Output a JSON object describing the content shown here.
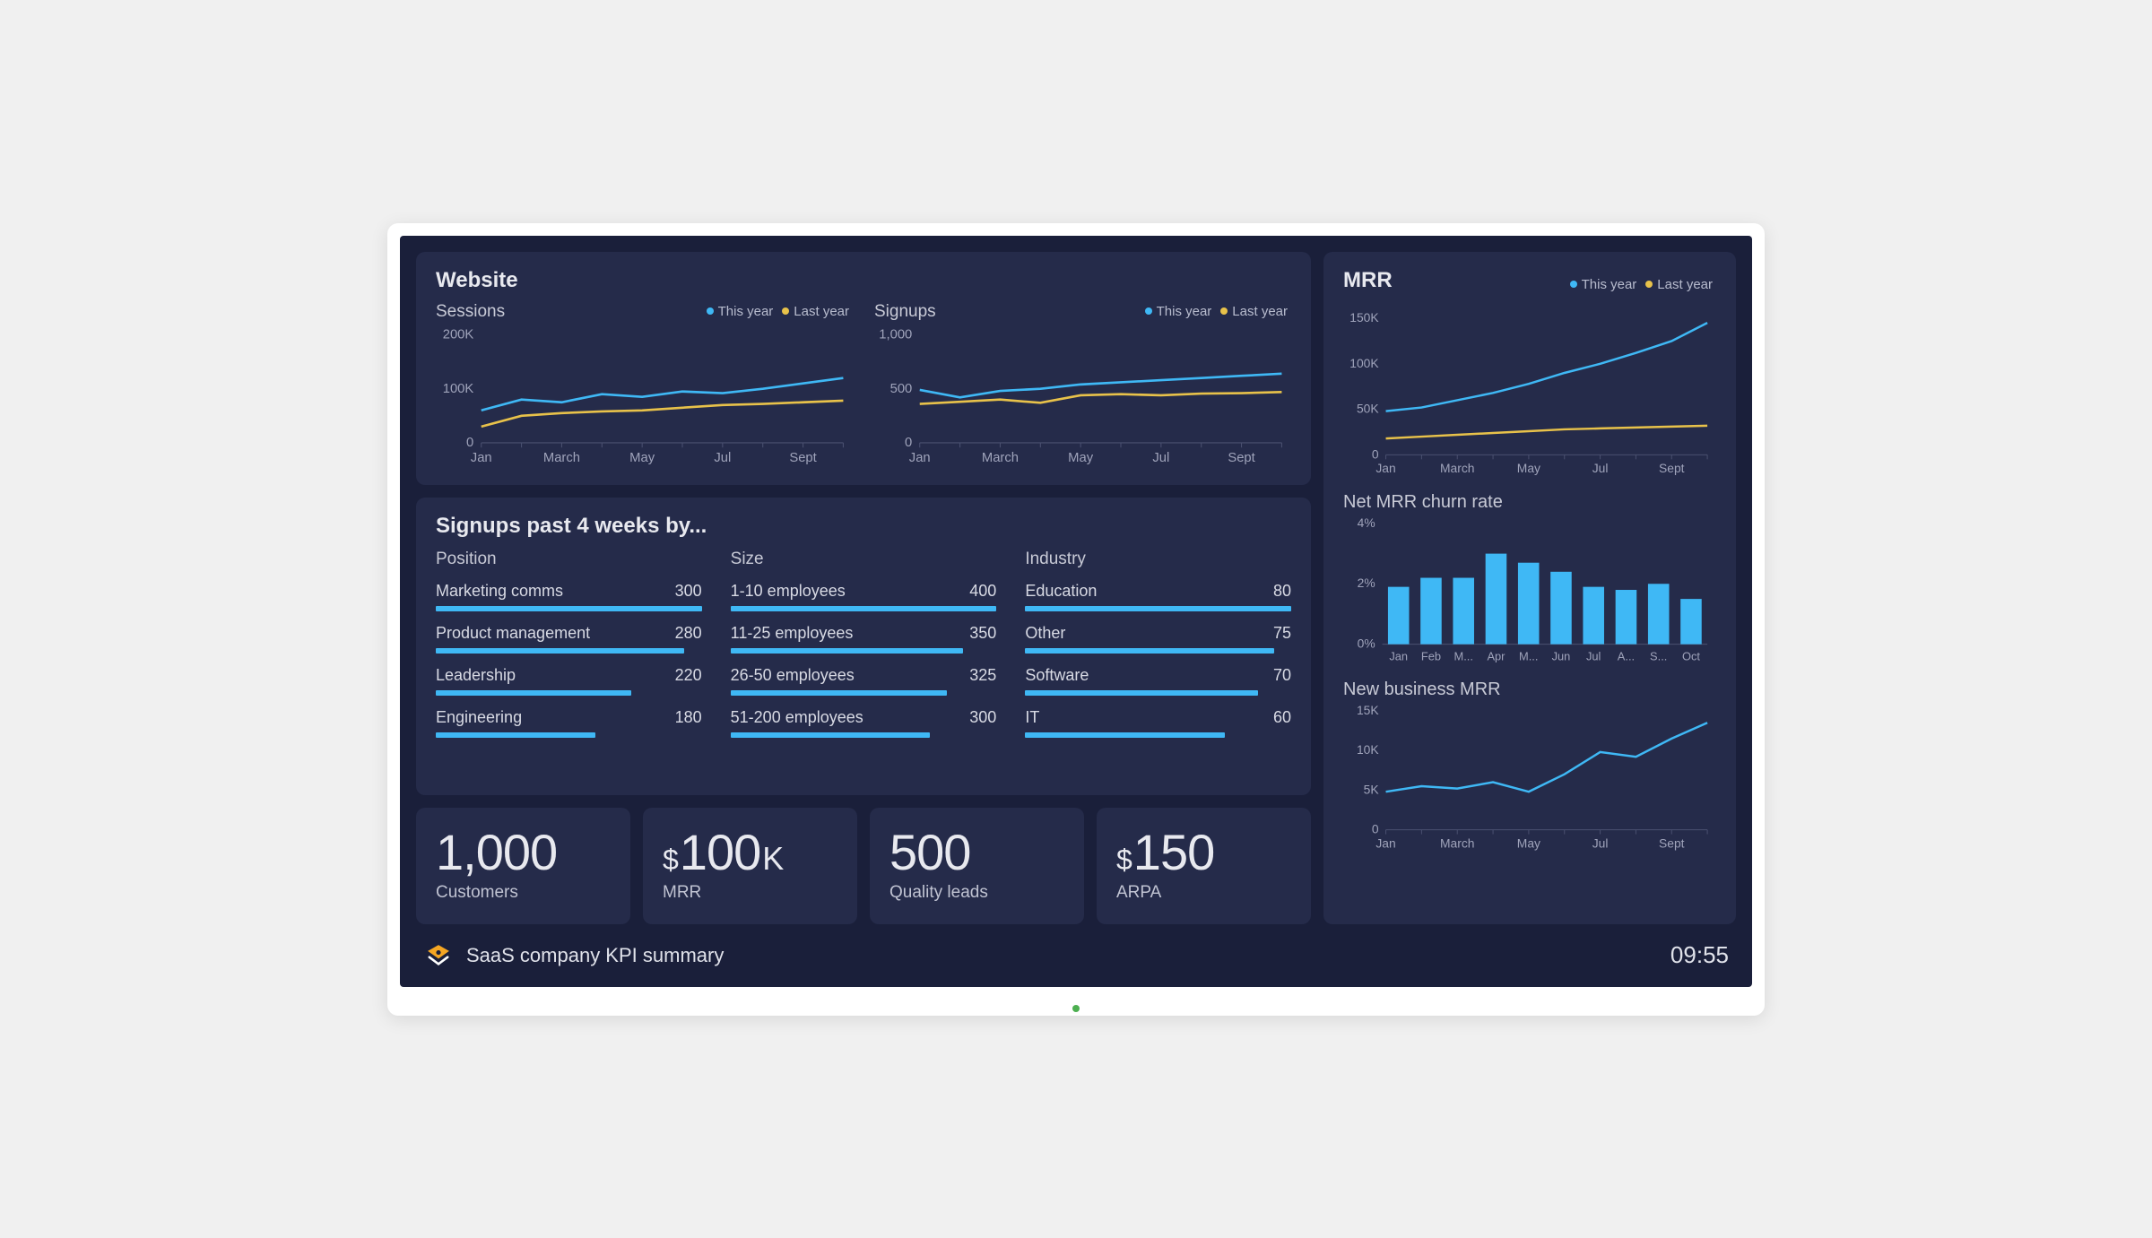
{
  "colors": {
    "screen_bg": "#1a1f3a",
    "panel_bg": "#252b4a",
    "text_primary": "#e8e9ef",
    "text_secondary": "#c0c3d2",
    "axis_text": "#9fa3ba",
    "axis_line": "#4a5070",
    "series_this_year": "#3fb8f5",
    "series_last_year": "#e8c24a",
    "bar_fill": "#3fb8f5",
    "logo_accent": "#f5a623"
  },
  "website": {
    "title": "Website",
    "legend": {
      "this_year": "This year",
      "last_year": "Last year"
    },
    "sessions": {
      "title": "Sessions",
      "type": "line",
      "x_labels": [
        "Jan",
        "",
        "March",
        "",
        "May",
        "",
        "Jul",
        "",
        "Sept",
        ""
      ],
      "y_ticks": [
        0,
        100000,
        200000
      ],
      "y_tick_labels": [
        "0",
        "100K",
        "200K"
      ],
      "ylim": [
        0,
        200000
      ],
      "this_year": [
        60000,
        80000,
        75000,
        90000,
        85000,
        95000,
        92000,
        100000,
        110000,
        120000
      ],
      "last_year": [
        30000,
        50000,
        55000,
        58000,
        60000,
        65000,
        70000,
        72000,
        75000,
        78000
      ]
    },
    "signups": {
      "title": "Signups",
      "type": "line",
      "x_labels": [
        "Jan",
        "",
        "March",
        "",
        "May",
        "",
        "Jul",
        "",
        "Sept",
        ""
      ],
      "y_ticks": [
        0,
        500,
        1000
      ],
      "y_tick_labels": [
        "0",
        "500",
        "1,000"
      ],
      "ylim": [
        0,
        1000
      ],
      "this_year": [
        490,
        420,
        480,
        500,
        540,
        560,
        580,
        600,
        620,
        640
      ],
      "last_year": [
        360,
        380,
        400,
        370,
        440,
        450,
        440,
        455,
        460,
        470
      ]
    }
  },
  "signups_by": {
    "title": "Signups past 4 weeks by...",
    "columns": [
      {
        "heading": "Position",
        "max": 300,
        "items": [
          {
            "label": "Marketing comms",
            "value": 300
          },
          {
            "label": "Product management",
            "value": 280
          },
          {
            "label": "Leadership",
            "value": 220
          },
          {
            "label": "Engineering",
            "value": 180
          }
        ]
      },
      {
        "heading": "Size",
        "max": 400,
        "items": [
          {
            "label": "1-10 employees",
            "value": 400
          },
          {
            "label": "11-25 employees",
            "value": 350
          },
          {
            "label": "26-50 employees",
            "value": 325
          },
          {
            "label": "51-200 employees",
            "value": 300
          }
        ]
      },
      {
        "heading": "Industry",
        "max": 80,
        "items": [
          {
            "label": "Education",
            "value": 80
          },
          {
            "label": "Other",
            "value": 75
          },
          {
            "label": "Software",
            "value": 70
          },
          {
            "label": "IT",
            "value": 60
          }
        ]
      }
    ]
  },
  "kpis": [
    {
      "prefix": "",
      "value": "1,000",
      "suffix": "",
      "label": "Customers"
    },
    {
      "prefix": "$",
      "value": "100",
      "suffix": "K",
      "label": "MRR"
    },
    {
      "prefix": "",
      "value": "500",
      "suffix": "",
      "label": "Quality leads"
    },
    {
      "prefix": "$",
      "value": "150",
      "suffix": "",
      "label": "ARPA"
    }
  ],
  "mrr": {
    "title": "MRR",
    "legend": {
      "this_year": "This year",
      "last_year": "Last year"
    },
    "main": {
      "type": "line",
      "x_labels": [
        "Jan",
        "",
        "March",
        "",
        "May",
        "",
        "Jul",
        "",
        "Sept",
        ""
      ],
      "y_ticks": [
        0,
        50000,
        100000,
        150000
      ],
      "y_tick_labels": [
        "0",
        "50K",
        "100K",
        "150K"
      ],
      "ylim": [
        0,
        160000
      ],
      "this_year": [
        48000,
        52000,
        60000,
        68000,
        78000,
        90000,
        100000,
        112000,
        125000,
        145000
      ],
      "last_year": [
        18000,
        20000,
        22000,
        24000,
        26000,
        28000,
        29000,
        30000,
        31000,
        32000
      ]
    },
    "churn": {
      "title": "Net MRR churn rate",
      "type": "bar",
      "x_labels": [
        "Jan",
        "Feb",
        "M...",
        "Apr",
        "M...",
        "Jun",
        "Jul",
        "A...",
        "S...",
        "Oct"
      ],
      "y_ticks": [
        0,
        2,
        4
      ],
      "y_tick_labels": [
        "0%",
        "2%",
        "4%"
      ],
      "ylim": [
        0,
        4
      ],
      "values": [
        1.9,
        2.2,
        2.2,
        3.0,
        2.7,
        2.4,
        1.9,
        1.8,
        2.0,
        1.5
      ],
      "bar_color": "#3fb8f5",
      "bar_width": 0.65
    },
    "new_business": {
      "title": "New business MRR",
      "type": "line",
      "x_labels": [
        "Jan",
        "",
        "March",
        "",
        "May",
        "",
        "Jul",
        "",
        "Sept",
        ""
      ],
      "y_ticks": [
        0,
        5000,
        10000,
        15000
      ],
      "y_tick_labels": [
        "0",
        "5K",
        "10K",
        "15K"
      ],
      "ylim": [
        0,
        15000
      ],
      "values": [
        4800,
        5500,
        5200,
        6000,
        4800,
        7000,
        9800,
        9200,
        11500,
        13500
      ],
      "line_color": "#3fb8f5"
    }
  },
  "footer": {
    "title": "SaaS company KPI summary",
    "time": "09:55"
  }
}
